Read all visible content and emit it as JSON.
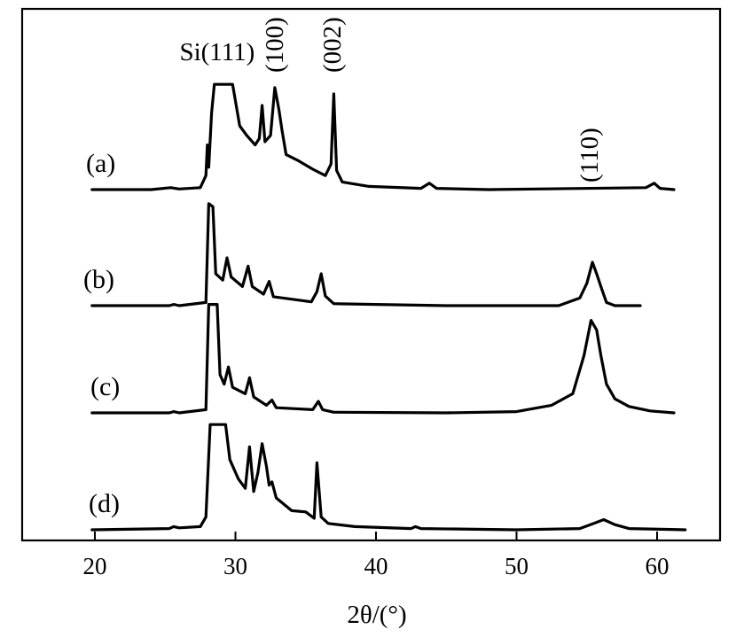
{
  "chart_data": {
    "type": "line",
    "title": "",
    "xlabel": "2θ/(°)",
    "ylabel": "",
    "xlim": [
      15,
      65
    ],
    "xticks": [
      20,
      30,
      40,
      50,
      60
    ],
    "yticks": "none",
    "grid": false,
    "series": [
      {
        "name": "(a)",
        "points": [
          [
            19.8,
            0.0
          ],
          [
            24.0,
            0.0
          ],
          [
            25.4,
            0.03
          ],
          [
            26.0,
            0.01
          ],
          [
            27.5,
            0.03
          ],
          [
            27.9,
            0.22
          ],
          [
            28.0,
            0.7
          ],
          [
            28.1,
            0.35
          ],
          [
            28.3,
            1.2
          ],
          [
            28.5,
            1.65
          ],
          [
            29.8,
            1.65
          ],
          [
            30.3,
            1.0
          ],
          [
            30.8,
            0.85
          ],
          [
            31.4,
            0.7
          ],
          [
            31.7,
            0.8
          ],
          [
            31.9,
            1.32
          ],
          [
            32.1,
            0.75
          ],
          [
            32.5,
            0.85
          ],
          [
            32.8,
            1.6
          ],
          [
            33.1,
            1.25
          ],
          [
            33.3,
            0.95
          ],
          [
            33.6,
            0.55
          ],
          [
            34.5,
            0.45
          ],
          [
            35.5,
            0.32
          ],
          [
            36.4,
            0.22
          ],
          [
            36.8,
            0.4
          ],
          [
            37.0,
            1.5
          ],
          [
            37.2,
            0.3
          ],
          [
            37.6,
            0.12
          ],
          [
            39.5,
            0.05
          ],
          [
            43.2,
            0.02
          ],
          [
            43.8,
            0.1
          ],
          [
            44.3,
            0.02
          ],
          [
            48.0,
            0.0
          ],
          [
            59.2,
            0.03
          ],
          [
            59.8,
            0.1
          ],
          [
            60.2,
            0.02
          ],
          [
            61.2,
            0.0
          ]
        ]
      },
      {
        "name": "(b)",
        "points": [
          [
            19.8,
            0.0
          ],
          [
            25.3,
            0.0
          ],
          [
            25.6,
            0.02
          ],
          [
            26.0,
            0.0
          ],
          [
            27.9,
            0.05
          ],
          [
            28.1,
            1.6
          ],
          [
            28.4,
            1.55
          ],
          [
            28.6,
            0.5
          ],
          [
            29.1,
            0.4
          ],
          [
            29.4,
            0.75
          ],
          [
            29.7,
            0.45
          ],
          [
            30.5,
            0.3
          ],
          [
            30.9,
            0.62
          ],
          [
            31.2,
            0.3
          ],
          [
            32.0,
            0.18
          ],
          [
            32.4,
            0.38
          ],
          [
            32.7,
            0.14
          ],
          [
            35.4,
            0.06
          ],
          [
            35.8,
            0.22
          ],
          [
            36.1,
            0.5
          ],
          [
            36.4,
            0.15
          ],
          [
            37.0,
            0.03
          ],
          [
            45.0,
            0.0
          ],
          [
            53.0,
            0.0
          ],
          [
            54.5,
            0.12
          ],
          [
            55.0,
            0.35
          ],
          [
            55.4,
            0.68
          ],
          [
            55.7,
            0.5
          ],
          [
            56.0,
            0.3
          ],
          [
            56.4,
            0.05
          ],
          [
            57.0,
            0.0
          ],
          [
            58.8,
            0.0
          ]
        ]
      },
      {
        "name": "(c)",
        "points": [
          [
            19.8,
            0.0
          ],
          [
            25.3,
            0.0
          ],
          [
            25.6,
            0.02
          ],
          [
            26.0,
            0.0
          ],
          [
            27.9,
            0.05
          ],
          [
            28.1,
            1.7
          ],
          [
            28.7,
            1.7
          ],
          [
            28.9,
            0.6
          ],
          [
            29.2,
            0.45
          ],
          [
            29.5,
            0.72
          ],
          [
            29.8,
            0.4
          ],
          [
            30.7,
            0.3
          ],
          [
            31.0,
            0.55
          ],
          [
            31.3,
            0.25
          ],
          [
            32.2,
            0.12
          ],
          [
            32.6,
            0.2
          ],
          [
            32.9,
            0.08
          ],
          [
            35.5,
            0.05
          ],
          [
            35.9,
            0.18
          ],
          [
            36.2,
            0.05
          ],
          [
            37.0,
            0.01
          ],
          [
            45.0,
            0.0
          ],
          [
            50.0,
            0.02
          ],
          [
            52.5,
            0.12
          ],
          [
            54.0,
            0.3
          ],
          [
            54.8,
            0.9
          ],
          [
            55.3,
            1.45
          ],
          [
            55.7,
            1.3
          ],
          [
            56.0,
            0.9
          ],
          [
            56.4,
            0.45
          ],
          [
            57.0,
            0.22
          ],
          [
            58.0,
            0.1
          ],
          [
            59.5,
            0.03
          ],
          [
            61.2,
            0.0
          ]
        ]
      },
      {
        "name": "(d)",
        "points": [
          [
            19.8,
            0.0
          ],
          [
            25.3,
            0.02
          ],
          [
            25.6,
            0.05
          ],
          [
            26.0,
            0.03
          ],
          [
            27.5,
            0.05
          ],
          [
            27.9,
            0.2
          ],
          [
            28.2,
            1.65
          ],
          [
            29.3,
            1.65
          ],
          [
            29.6,
            1.1
          ],
          [
            30.2,
            0.8
          ],
          [
            30.7,
            0.65
          ],
          [
            31.0,
            1.3
          ],
          [
            31.3,
            0.6
          ],
          [
            31.6,
            0.9
          ],
          [
            31.9,
            1.35
          ],
          [
            32.2,
            1.0
          ],
          [
            32.4,
            0.7
          ],
          [
            32.6,
            0.75
          ],
          [
            32.9,
            0.5
          ],
          [
            34.0,
            0.3
          ],
          [
            35.0,
            0.28
          ],
          [
            35.6,
            0.18
          ],
          [
            35.8,
            1.05
          ],
          [
            36.1,
            0.2
          ],
          [
            36.6,
            0.1
          ],
          [
            38.5,
            0.05
          ],
          [
            42.5,
            0.02
          ],
          [
            42.8,
            0.05
          ],
          [
            43.2,
            0.02
          ],
          [
            50.0,
            0.0
          ],
          [
            54.5,
            0.02
          ],
          [
            55.5,
            0.1
          ],
          [
            56.2,
            0.16
          ],
          [
            57.0,
            0.08
          ],
          [
            58.0,
            0.02
          ],
          [
            62.0,
            0.0
          ]
        ]
      }
    ],
    "annotations": [
      {
        "text": "Si(111)",
        "x": 28.7,
        "series": "(a)",
        "orientation": "horizontal"
      },
      {
        "text": "(100)",
        "x": 32.8,
        "series": "(a)",
        "orientation": "vertical"
      },
      {
        "text": "(002)",
        "x": 36.9,
        "series": "(a)",
        "orientation": "vertical"
      },
      {
        "text": "(110)",
        "x": 55.2,
        "series": "(a)",
        "orientation": "vertical"
      }
    ]
  }
}
